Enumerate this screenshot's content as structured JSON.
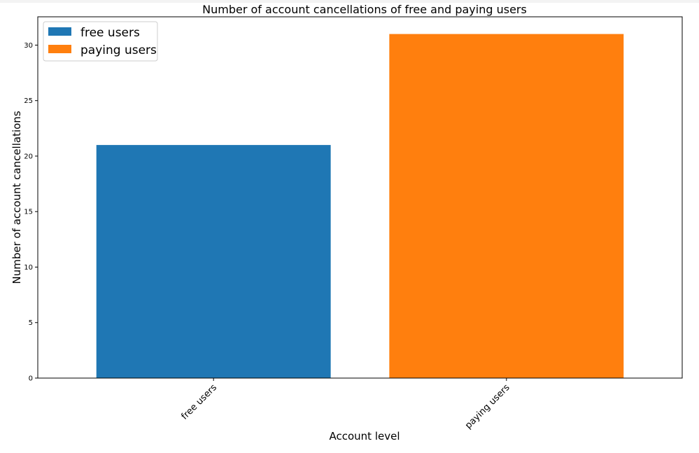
{
  "chart_data": {
    "type": "bar",
    "title": "Number of account cancellations of free and paying users",
    "xlabel": "Account level",
    "ylabel": "Number of account cancellations",
    "categories": [
      "free users",
      "paying users"
    ],
    "values": [
      21,
      31
    ],
    "colors": [
      "#1f77b4",
      "#ff7f0e"
    ],
    "ylim": [
      0,
      32.55
    ],
    "yticks": [
      0,
      5,
      10,
      15,
      20,
      25,
      30
    ],
    "xtick_rotation_deg": 45,
    "grid": false,
    "legend": {
      "placement": "top-left",
      "entries": [
        {
          "label": "free users",
          "color": "#1f77b4"
        },
        {
          "label": "paying users",
          "color": "#ff7f0e"
        }
      ]
    }
  }
}
